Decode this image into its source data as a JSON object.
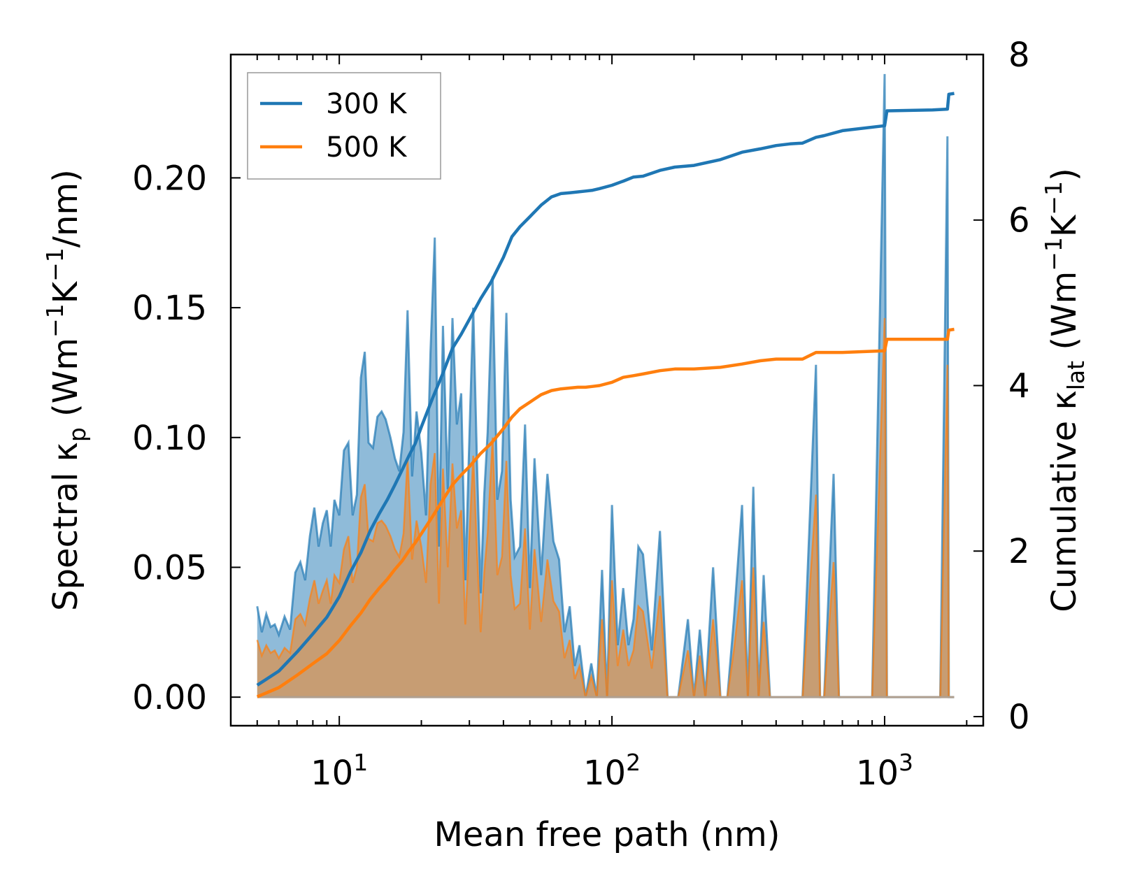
{
  "chart_data": {
    "type": "area+line",
    "xlabel": "Mean free path (nm)",
    "ylabel_left": "Spectral κ_p (Wm⁻¹K⁻¹/nm)",
    "ylabel_left_parts": {
      "prefix": "Spectral κ",
      "sub": "p",
      "mid1": " (Wm",
      "sup1": "−1",
      "mid2": "K",
      "sup2": "−1",
      "suffix": "/nm)"
    },
    "ylabel_right": "Cumulative κ_lat (Wm⁻¹K⁻¹)",
    "ylabel_right_parts": {
      "prefix": "Cumulative κ",
      "sub": "lat",
      "mid1": " (Wm",
      "sup1": "−1",
      "mid2": "K",
      "sup2": "−1",
      "suffix": ")"
    },
    "xscale": "log",
    "xlim": [
      4.0,
      2300
    ],
    "ylim_left": [
      -0.011,
      0.2475
    ],
    "ylim_right": [
      -0.11,
      8
    ],
    "x_ticks": [
      {
        "value": 10,
        "base": "10",
        "exp": "1"
      },
      {
        "value": 100,
        "base": "10",
        "exp": "2"
      },
      {
        "value": 1000,
        "base": "10",
        "exp": "3"
      }
    ],
    "y_left_ticks": [
      {
        "value": 0.0,
        "label": "0.00"
      },
      {
        "value": 0.05,
        "label": "0.05"
      },
      {
        "value": 0.1,
        "label": "0.10"
      },
      {
        "value": 0.15,
        "label": "0.15"
      },
      {
        "value": 0.2,
        "label": "0.20"
      }
    ],
    "y_right_ticks": [
      {
        "value": 0,
        "label": "0"
      },
      {
        "value": 2,
        "label": "2"
      },
      {
        "value": 4,
        "label": "4"
      },
      {
        "value": 6,
        "label": "6"
      },
      {
        "value": 8,
        "label": "8"
      }
    ],
    "legend": {
      "position": "top-left",
      "entries": [
        {
          "name": "300 K",
          "color": "#1f77b4"
        },
        {
          "name": "500 K",
          "color": "#ff7f0e"
        }
      ]
    },
    "colors": {
      "s300": "#1f77b4",
      "s500": "#ff7f0e",
      "fill300": "#1f77b4",
      "fill500": "#ff7f0e"
    },
    "series": [
      {
        "name": "300 K",
        "spectral": {
          "x": [
            5,
            5.2,
            5.4,
            5.6,
            5.8,
            6.0,
            6.3,
            6.6,
            6.9,
            7.2,
            7.5,
            7.8,
            8.1,
            8.4,
            8.7,
            9.0,
            9.3,
            9.6,
            10.0,
            10.4,
            10.8,
            11.2,
            11.6,
            12.0,
            12.4,
            12.8,
            13.3,
            13.8,
            14.3,
            14.8,
            15.4,
            16.0,
            16.6,
            17.2,
            17.8,
            18.5,
            19.2,
            20.0,
            20.8,
            21.6,
            22.4,
            23.2,
            24.0,
            25.0,
            26.0,
            27.0,
            28.0,
            29.0,
            30.0,
            31.0,
            32.0,
            33.0,
            34.0,
            35.0,
            36.5,
            38.0,
            39.5,
            41.0,
            42.5,
            44.0,
            46.0,
            48.0,
            50.0,
            52.0,
            55.0,
            58.0,
            61.0,
            64.0,
            67.0,
            70.0,
            73.0,
            76.0,
            80.0,
            84.0,
            88.0,
            92.0,
            96.0,
            100,
            105,
            110,
            115,
            120,
            125,
            130,
            140,
            150,
            160,
            175,
            190,
            200,
            210,
            220,
            235,
            250,
            265,
            280,
            300,
            315,
            330,
            345,
            360,
            380,
            400,
            450,
            500,
            560,
            580,
            600,
            650,
            680,
            700,
            900,
            1000,
            1020,
            1050,
            1100,
            1600,
            1700,
            1720,
            1760,
            1800
          ],
          "y": [
            0.035,
            0.025,
            0.032,
            0.027,
            0.028,
            0.024,
            0.031,
            0.026,
            0.048,
            0.052,
            0.045,
            0.062,
            0.073,
            0.058,
            0.067,
            0.072,
            0.058,
            0.076,
            0.07,
            0.095,
            0.098,
            0.07,
            0.078,
            0.123,
            0.133,
            0.098,
            0.096,
            0.108,
            0.11,
            0.107,
            0.1,
            0.092,
            0.087,
            0.102,
            0.149,
            0.085,
            0.11,
            0.094,
            0.07,
            0.133,
            0.177,
            0.058,
            0.143,
            0.08,
            0.146,
            0.105,
            0.117,
            0.045,
            0.1,
            0.15,
            0.09,
            0.04,
            0.078,
            0.102,
            0.162,
            0.076,
            0.087,
            0.148,
            0.076,
            0.054,
            0.058,
            0.105,
            0.042,
            0.092,
            0.047,
            0.086,
            0.06,
            0.053,
            0.025,
            0.035,
            0.012,
            0.02,
            0.0,
            0.013,
            0.0,
            0.049,
            0.0,
            0.074,
            0.02,
            0.042,
            0.02,
            0.03,
            0.058,
            0.055,
            0.018,
            0.064,
            0.0,
            0.0,
            0.03,
            0.0,
            0.026,
            0.0,
            0.05,
            0.0,
            0.0,
            0.03,
            0.074,
            0.0,
            0.081,
            0.0,
            0.047,
            0.0,
            0.0,
            0.0,
            0.0,
            0.128,
            0.0,
            0.0,
            0.086,
            0.0,
            0.0,
            0.0,
            0.24,
            0.0,
            0.0,
            0.0,
            0.0,
            0.216,
            0.0,
            0.0,
            0.0
          ]
        },
        "cumulative": {
          "x": [
            5,
            6,
            7,
            8,
            9,
            10,
            11,
            12,
            13,
            14,
            15,
            16,
            17,
            18,
            19,
            20,
            22,
            24,
            26,
            28,
            30,
            33,
            36,
            40,
            43,
            46,
            50,
            55,
            60,
            65,
            70,
            75,
            80,
            85,
            90,
            100,
            110,
            120,
            130,
            150,
            170,
            200,
            250,
            300,
            350,
            400,
            450,
            500,
            560,
            600,
            700,
            1000,
            1020,
            1500,
            1700,
            1720,
            1800
          ],
          "y": [
            0.38,
            0.55,
            0.78,
            1.0,
            1.2,
            1.45,
            1.75,
            1.98,
            2.25,
            2.45,
            2.62,
            2.8,
            2.98,
            3.15,
            3.3,
            3.5,
            3.85,
            4.15,
            4.45,
            4.62,
            4.8,
            5.05,
            5.25,
            5.55,
            5.8,
            5.92,
            6.04,
            6.18,
            6.28,
            6.32,
            6.33,
            6.34,
            6.35,
            6.36,
            6.38,
            6.42,
            6.47,
            6.52,
            6.53,
            6.6,
            6.64,
            6.66,
            6.73,
            6.82,
            6.86,
            6.9,
            6.92,
            6.93,
            7.0,
            7.02,
            7.08,
            7.14,
            7.32,
            7.33,
            7.34,
            7.52,
            7.53
          ]
        }
      },
      {
        "name": "500 K",
        "spectral": {
          "x": [
            5,
            5.2,
            5.4,
            5.6,
            5.8,
            6.0,
            6.3,
            6.6,
            6.9,
            7.2,
            7.5,
            7.8,
            8.1,
            8.4,
            8.7,
            9.0,
            9.3,
            9.6,
            10.0,
            10.4,
            10.8,
            11.2,
            11.6,
            12.0,
            12.4,
            12.8,
            13.3,
            13.8,
            14.3,
            14.8,
            15.4,
            16.0,
            16.6,
            17.2,
            17.8,
            18.5,
            19.2,
            20.0,
            20.8,
            21.6,
            22.4,
            23.2,
            24.0,
            25.0,
            26.0,
            27.0,
            28.0,
            29.0,
            30.0,
            31.0,
            32.0,
            33.0,
            34.0,
            35.0,
            36.5,
            38.0,
            39.5,
            41.0,
            42.5,
            44.0,
            46.0,
            48.0,
            50.0,
            52.0,
            55.0,
            58.0,
            61.0,
            64.0,
            67.0,
            70.0,
            73.0,
            76.0,
            80.0,
            84.0,
            88.0,
            92.0,
            96.0,
            100,
            105,
            110,
            115,
            120,
            125,
            130,
            140,
            150,
            160,
            175,
            190,
            200,
            210,
            220,
            235,
            250,
            265,
            280,
            300,
            315,
            330,
            345,
            360,
            380,
            400,
            450,
            500,
            560,
            580,
            600,
            650,
            680,
            700,
            900,
            1000,
            1020,
            1050,
            1100,
            1600,
            1700,
            1720,
            1760,
            1800
          ],
          "y": [
            0.022,
            0.016,
            0.02,
            0.017,
            0.018,
            0.015,
            0.019,
            0.017,
            0.03,
            0.032,
            0.028,
            0.038,
            0.045,
            0.036,
            0.041,
            0.045,
            0.036,
            0.047,
            0.044,
            0.057,
            0.062,
            0.044,
            0.05,
            0.077,
            0.082,
            0.061,
            0.06,
            0.067,
            0.068,
            0.066,
            0.062,
            0.057,
            0.054,
            0.063,
            0.092,
            0.053,
            0.068,
            0.058,
            0.044,
            0.082,
            0.094,
            0.036,
            0.088,
            0.05,
            0.09,
            0.065,
            0.072,
            0.028,
            0.062,
            0.093,
            0.056,
            0.025,
            0.048,
            0.063,
            0.1,
            0.047,
            0.054,
            0.091,
            0.047,
            0.034,
            0.036,
            0.065,
            0.026,
            0.057,
            0.029,
            0.053,
            0.037,
            0.033,
            0.015,
            0.022,
            0.007,
            0.012,
            0.0,
            0.008,
            0.0,
            0.03,
            0.0,
            0.045,
            0.012,
            0.026,
            0.012,
            0.018,
            0.035,
            0.033,
            0.011,
            0.039,
            0.0,
            0.0,
            0.018,
            0.0,
            0.016,
            0.0,
            0.03,
            0.0,
            0.0,
            0.018,
            0.045,
            0.0,
            0.05,
            0.0,
            0.029,
            0.0,
            0.0,
            0.0,
            0.0,
            0.078,
            0.0,
            0.0,
            0.052,
            0.0,
            0.0,
            0.0,
            0.146,
            0.0,
            0.0,
            0.0,
            0.0,
            0.128,
            0.0,
            0.0,
            0.0
          ]
        },
        "cumulative": {
          "x": [
            5,
            6,
            7,
            8,
            9,
            10,
            11,
            12,
            13,
            14,
            15,
            16,
            17,
            18,
            19,
            20,
            22,
            24,
            26,
            28,
            30,
            33,
            36,
            40,
            43,
            46,
            50,
            55,
            60,
            65,
            70,
            75,
            80,
            85,
            90,
            100,
            110,
            120,
            130,
            150,
            170,
            200,
            250,
            300,
            350,
            400,
            450,
            500,
            560,
            600,
            700,
            1000,
            1020,
            1500,
            1700,
            1720,
            1800
          ],
          "y": [
            0.24,
            0.35,
            0.5,
            0.64,
            0.76,
            0.92,
            1.1,
            1.25,
            1.42,
            1.55,
            1.66,
            1.78,
            1.88,
            2.0,
            2.1,
            2.21,
            2.42,
            2.62,
            2.8,
            2.92,
            3.02,
            3.18,
            3.3,
            3.48,
            3.62,
            3.72,
            3.8,
            3.89,
            3.94,
            3.96,
            3.97,
            3.98,
            3.98,
            3.99,
            4.0,
            4.04,
            4.1,
            4.12,
            4.14,
            4.18,
            4.2,
            4.2,
            4.22,
            4.26,
            4.3,
            4.32,
            4.32,
            4.32,
            4.4,
            4.4,
            4.4,
            4.42,
            4.56,
            4.56,
            4.56,
            4.67,
            4.68
          ]
        }
      }
    ]
  }
}
